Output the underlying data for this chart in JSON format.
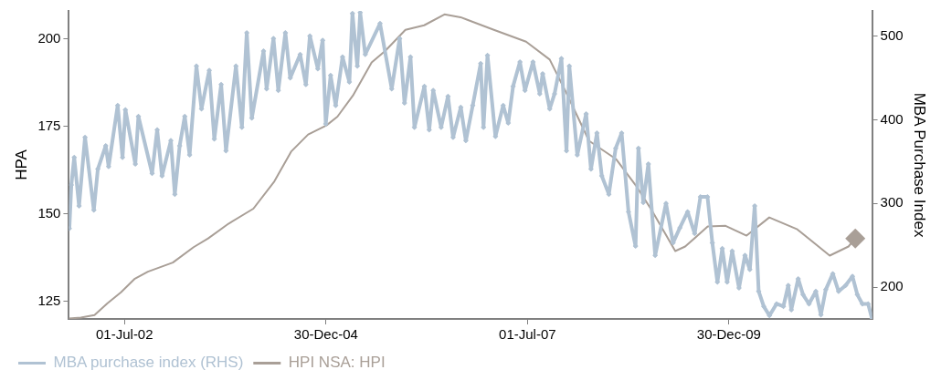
{
  "chart_data": {
    "type": "line",
    "ylabel": "HPA",
    "y2label": "MBA Purchase Index",
    "grid": false,
    "legend": "bottom left",
    "xlim": [
      "2001-10-22",
      "2011-10-10"
    ],
    "xticks": [
      {
        "value": "2002-07-01",
        "label": "01-Jul-02"
      },
      {
        "value": "2004-12-30",
        "label": "30-Dec-04"
      },
      {
        "value": "2007-07-01",
        "label": "01-Jul-07"
      },
      {
        "value": "2009-12-30",
        "label": "30-Dec-09"
      }
    ],
    "ylim": [
      120,
      208
    ],
    "yticks": [
      125,
      150,
      175,
      200
    ],
    "y2lim": [
      162,
      530
    ],
    "y2ticks": [
      200,
      300,
      400,
      500
    ],
    "series": [
      {
        "name": "MBA purchase index (RHS)",
        "axis": "y2",
        "color": "#b0c2d3",
        "marker": "diamond",
        "x": [
          "2001-10-24",
          "2001-11-02",
          "2001-11-15",
          "2001-12-07",
          "2002-01-03",
          "2002-02-12",
          "2002-03-02",
          "2002-04-07",
          "2002-04-20",
          "2002-05-31",
          "2002-06-22",
          "2002-07-05",
          "2002-08-19",
          "2002-09-02",
          "2002-11-03",
          "2002-11-26",
          "2002-12-18",
          "2003-01-27",
          "2003-02-14",
          "2003-03-08",
          "2003-03-31",
          "2003-04-22",
          "2003-05-23",
          "2003-06-15",
          "2003-07-20",
          "2003-08-12",
          "2003-09-12",
          "2003-10-04",
          "2003-11-18",
          "2003-12-15",
          "2004-01-06",
          "2004-01-29",
          "2004-03-22",
          "2004-04-05",
          "2004-05-06",
          "2004-05-28",
          "2004-06-29",
          "2004-07-21",
          "2004-09-04",
          "2004-09-30",
          "2004-10-18",
          "2004-11-23",
          "2004-12-15",
          "2004-12-29",
          "2005-01-20",
          "2005-02-12",
          "2005-03-15",
          "2005-04-15",
          "2005-04-29",
          "2005-05-21",
          "2005-06-03",
          "2005-06-26",
          "2005-09-01",
          "2005-10-24",
          "2005-11-29",
          "2005-12-21",
          "2006-01-17",
          "2006-02-04",
          "2006-03-21",
          "2006-04-12",
          "2006-04-30",
          "2006-06-05",
          "2006-07-06",
          "2006-07-29",
          "2006-09-02",
          "2006-09-25",
          "2006-10-26",
          "2006-12-01",
          "2006-12-14",
          "2007-01-01",
          "2007-02-06",
          "2007-03-13",
          "2007-04-05",
          "2007-04-27",
          "2007-05-28",
          "2007-06-20",
          "2007-07-26",
          "2007-08-26",
          "2007-09-08",
          "2007-10-10",
          "2007-11-01",
          "2007-12-02",
          "2007-12-25",
          "2008-01-07",
          "2008-02-12",
          "2008-03-23",
          "2008-04-14",
          "2008-05-11",
          "2008-06-02",
          "2008-07-04",
          "2008-08-04",
          "2008-08-31",
          "2008-10-01",
          "2008-11-02",
          "2008-11-15",
          "2008-12-07",
          "2008-12-30",
          "2009-01-30",
          "2009-03-20",
          "2009-04-21",
          "2009-05-22",
          "2009-06-26",
          "2009-07-28",
          "2009-08-23",
          "2009-09-24",
          "2009-10-16",
          "2009-11-08",
          "2009-11-30",
          "2009-12-22",
          "2010-01-14",
          "2010-02-14",
          "2010-03-13",
          "2010-04-04",
          "2010-04-26",
          "2010-05-14",
          "2010-06-06",
          "2010-07-02",
          "2010-08-03",
          "2010-09-03",
          "2010-09-25",
          "2010-10-09",
          "2010-11-09",
          "2010-12-01",
          "2010-12-28",
          "2011-01-28",
          "2011-02-20",
          "2011-03-14",
          "2011-04-15",
          "2011-05-11",
          "2011-06-12",
          "2011-07-13",
          "2011-08-04",
          "2011-08-27",
          "2011-09-22",
          "2011-10-10"
        ],
        "values": [
          270,
          322,
          355,
          297,
          379,
          292,
          341,
          369,
          344,
          417,
          355,
          412,
          347,
          404,
          336,
          388,
          333,
          375,
          311,
          369,
          404,
          358,
          464,
          413,
          459,
          377,
          442,
          363,
          464,
          391,
          504,
          402,
          482,
          437,
          497,
          435,
          504,
          450,
          478,
          442,
          500,
          461,
          495,
          395,
          453,
          417,
          475,
          445,
          527,
          464,
          528,
          478,
          515,
          437,
          497,
          420,
          475,
          391,
          440,
          388,
          435,
          391,
          428,
          379,
          415,
          375,
          417,
          467,
          391,
          477,
          380,
          417,
          396,
          440,
          469,
          435,
          469,
          431,
          455,
          413,
          431,
          473,
          363,
          464,
          358,
          407,
          341,
          384,
          333,
          311,
          366,
          384,
          290,
          249,
          366,
          301,
          347,
          238,
          300,
          253,
          271,
          290,
          264,
          308,
          308,
          253,
          206,
          246,
          206,
          243,
          199,
          238,
          221,
          297,
          195,
          177,
          166,
          180,
          177,
          202,
          173,
          210,
          191,
          180,
          195,
          167,
          197,
          216,
          195,
          202,
          213,
          191,
          180,
          180,
          162
        ]
      },
      {
        "name": "HPI NSA: HPI",
        "color": "#a99f97",
        "marker": "none",
        "x": [
          "2001-10-22",
          "2001-12-15",
          "2002-02-15",
          "2002-04-15",
          "2002-06-15",
          "2002-08-15",
          "2002-10-15",
          "2003-02-05",
          "2003-05-10",
          "2003-07-15",
          "2003-10-15",
          "2004-02-05",
          "2004-05-10",
          "2004-07-25",
          "2004-10-10",
          "2005-01-01",
          "2005-02-20",
          "2005-05-01",
          "2005-07-25",
          "2005-09-25",
          "2005-12-25",
          "2006-03-20",
          "2006-06-20",
          "2006-09-01",
          "2007-01-30",
          "2007-06-25",
          "2007-10-10",
          "2007-12-25",
          "2008-04-05",
          "2008-08-05",
          "2008-11-05",
          "2009-01-15",
          "2009-05-01",
          "2009-06-15",
          "2009-09-25",
          "2009-12-15",
          "2010-03-20",
          "2010-07-01",
          "2010-11-05",
          "2011-01-30",
          "2011-04-01",
          "2011-06-25",
          "2011-07-26"
        ],
        "values": [
          120.1,
          120.4,
          121.1,
          124.5,
          127.6,
          131.4,
          133.5,
          136.1,
          140.5,
          143.0,
          147.2,
          151.5,
          159.3,
          167.8,
          172.7,
          175.3,
          177.8,
          183.8,
          193.3,
          196.6,
          202.6,
          203.9,
          207.0,
          206.2,
          202.6,
          199.2,
          194.1,
          184.5,
          170.9,
          165.7,
          158.0,
          151.0,
          139.4,
          140.7,
          146.4,
          146.6,
          143.8,
          149.0,
          145.6,
          141.2,
          138.1,
          140.7,
          143.0
        ]
      },
      {
        "type": "scatter",
        "color": "#a99f97",
        "marker": "diamond",
        "x": [
          "2011-07-26"
        ],
        "values": [
          143.0
        ]
      }
    ]
  }
}
